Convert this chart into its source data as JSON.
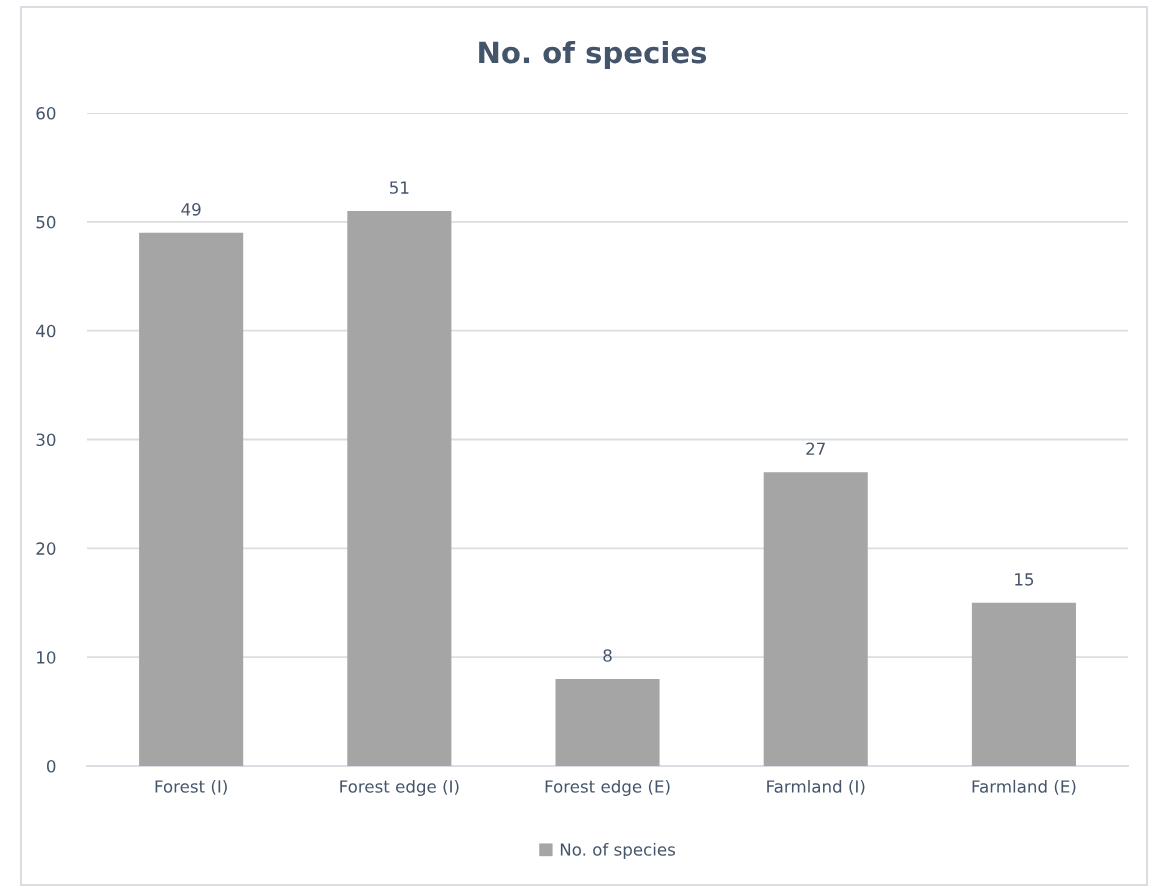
{
  "chart_data": {
    "type": "bar",
    "title": "No. of species",
    "categories": [
      "Forest (I)",
      "Forest edge (I)",
      "Forest edge (E)",
      "Farmland (I)",
      "Farmland (E)"
    ],
    "series": [
      {
        "name": "No. of species",
        "color": "#a5a5a5",
        "values": [
          49,
          51,
          8,
          27,
          15
        ]
      }
    ],
    "ylim": [
      0,
      60
    ],
    "yticks": [
      0,
      10,
      20,
      30,
      40,
      50,
      60
    ],
    "grid": "y",
    "legend": "bottom",
    "data_labels": true
  }
}
